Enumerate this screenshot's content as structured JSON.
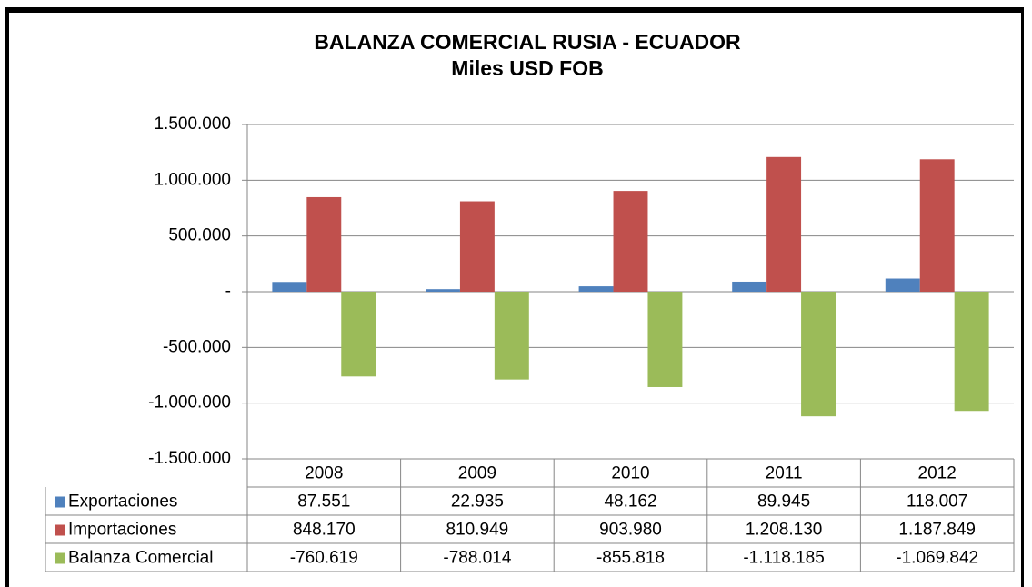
{
  "chart_data": {
    "type": "bar",
    "title": "BALANZA COMERCIAL RUSIA - ECUADOR",
    "subtitle": "Miles USD FOB",
    "categories": [
      "2008",
      "2009",
      "2010",
      "2011",
      "2012"
    ],
    "series": [
      {
        "name": "Exportaciones",
        "color": "#4f81bd",
        "values": [
          87551,
          22935,
          48162,
          89945,
          118007
        ],
        "value_labels": [
          "87.551",
          "22.935",
          "48.162",
          "89.945",
          "118.007"
        ]
      },
      {
        "name": "Importaciones",
        "color": "#c0504d",
        "values": [
          848170,
          810949,
          903980,
          1208130,
          1187849
        ],
        "value_labels": [
          "848.170",
          "810.949",
          "903.980",
          "1.208.130",
          "1.187.849"
        ]
      },
      {
        "name": "Balanza Comercial",
        "color": "#9bbb59",
        "values": [
          -760619,
          -788014,
          -855818,
          -1118185,
          -1069842
        ],
        "value_labels": [
          "-760.619",
          "-788.014",
          "-855.818",
          "-1.118.185",
          "-1.069.842"
        ]
      }
    ],
    "ylim": [
      -1500000,
      1500000
    ],
    "yticks": [
      {
        "value": -1500000,
        "label": "-1.500.000"
      },
      {
        "value": -1000000,
        "label": "-1.000.000"
      },
      {
        "value": -500000,
        "label": "-500.000"
      },
      {
        "value": 0,
        "label": "-"
      },
      {
        "value": 500000,
        "label": "500.000"
      },
      {
        "value": 1000000,
        "label": "1.000.000"
      },
      {
        "value": 1500000,
        "label": "1.500.000"
      }
    ],
    "grid": true
  }
}
